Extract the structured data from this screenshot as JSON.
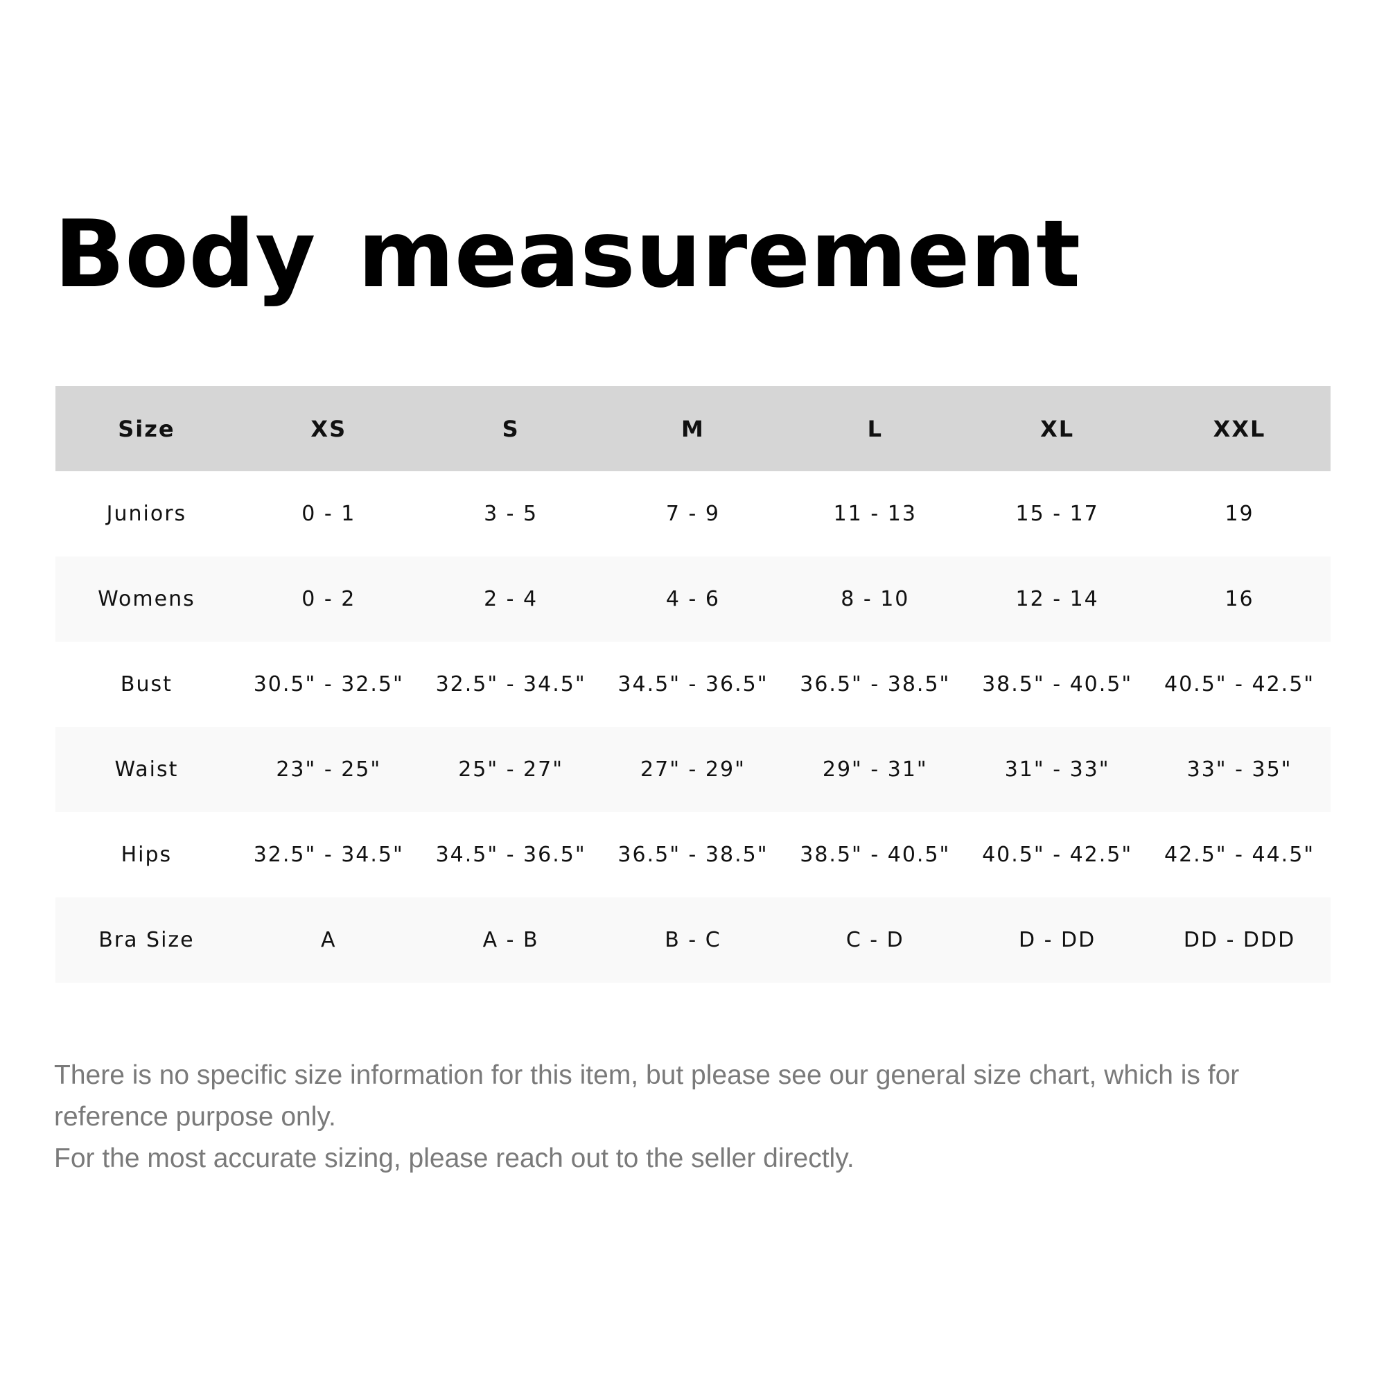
{
  "title": "Body  measurement",
  "table": {
    "headers": [
      "Size",
      "XS",
      "S",
      "M",
      "L",
      "XL",
      "XXL"
    ],
    "rows": [
      [
        "Juniors",
        "0 - 1",
        "3 - 5",
        "7 - 9",
        "11 - 13",
        "15 - 17",
        "19"
      ],
      [
        "Womens",
        "0 - 2",
        "2 - 4",
        "4 - 6",
        "8 - 10",
        "12 - 14",
        "16"
      ],
      [
        "Bust",
        "30.5\" - 32.5\"",
        "32.5\" - 34.5\"",
        "34.5\" - 36.5\"",
        "36.5\" - 38.5\"",
        "38.5\" - 40.5\"",
        "40.5\" - 42.5\""
      ],
      [
        "Waist",
        "23\" - 25\"",
        "25\" - 27\"",
        "27\" - 29\"",
        "29\" - 31\"",
        "31\" - 33\"",
        "33\" - 35\""
      ],
      [
        "Hips",
        "32.5\" - 34.5\"",
        "34.5\" - 36.5\"",
        "36.5\" - 38.5\"",
        "38.5\" - 40.5\"",
        "40.5\" - 42.5\"",
        "42.5\" - 44.5\""
      ],
      [
        "Bra Size",
        "A",
        "A - B",
        "B - C",
        "C - D",
        "D - DD",
        "DD - DDD"
      ]
    ]
  },
  "notes": [
    "There is no specific size information for this item, but please see our general size chart, which is for reference purpose only.",
    "For the most accurate sizing, please reach out to the seller directly."
  ],
  "colors": {
    "header_bg": "#d6d6d6",
    "alt_row_bg": "#f9f9f9",
    "note_text": "#7a7a7a"
  }
}
